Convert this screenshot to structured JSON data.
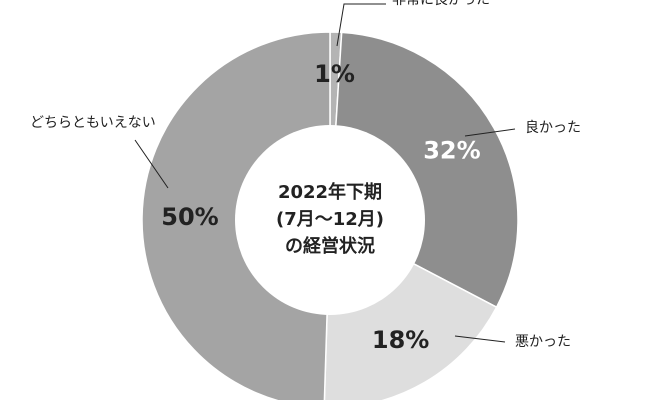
{
  "chart_data": {
    "type": "donut",
    "center_title": [
      "2022年下期",
      "(7月〜12月)",
      "の経営状況"
    ],
    "categories": [
      "非常に良かった",
      "良かった",
      "悪かった",
      "どちらともいえない"
    ],
    "values": [
      1,
      32,
      18,
      50
    ],
    "value_labels": [
      "1%",
      "32%",
      "18%",
      "50%"
    ],
    "colors": [
      "#b4b4b4",
      "#8e8e8e",
      "#dedede",
      "#a4a4a4"
    ]
  }
}
